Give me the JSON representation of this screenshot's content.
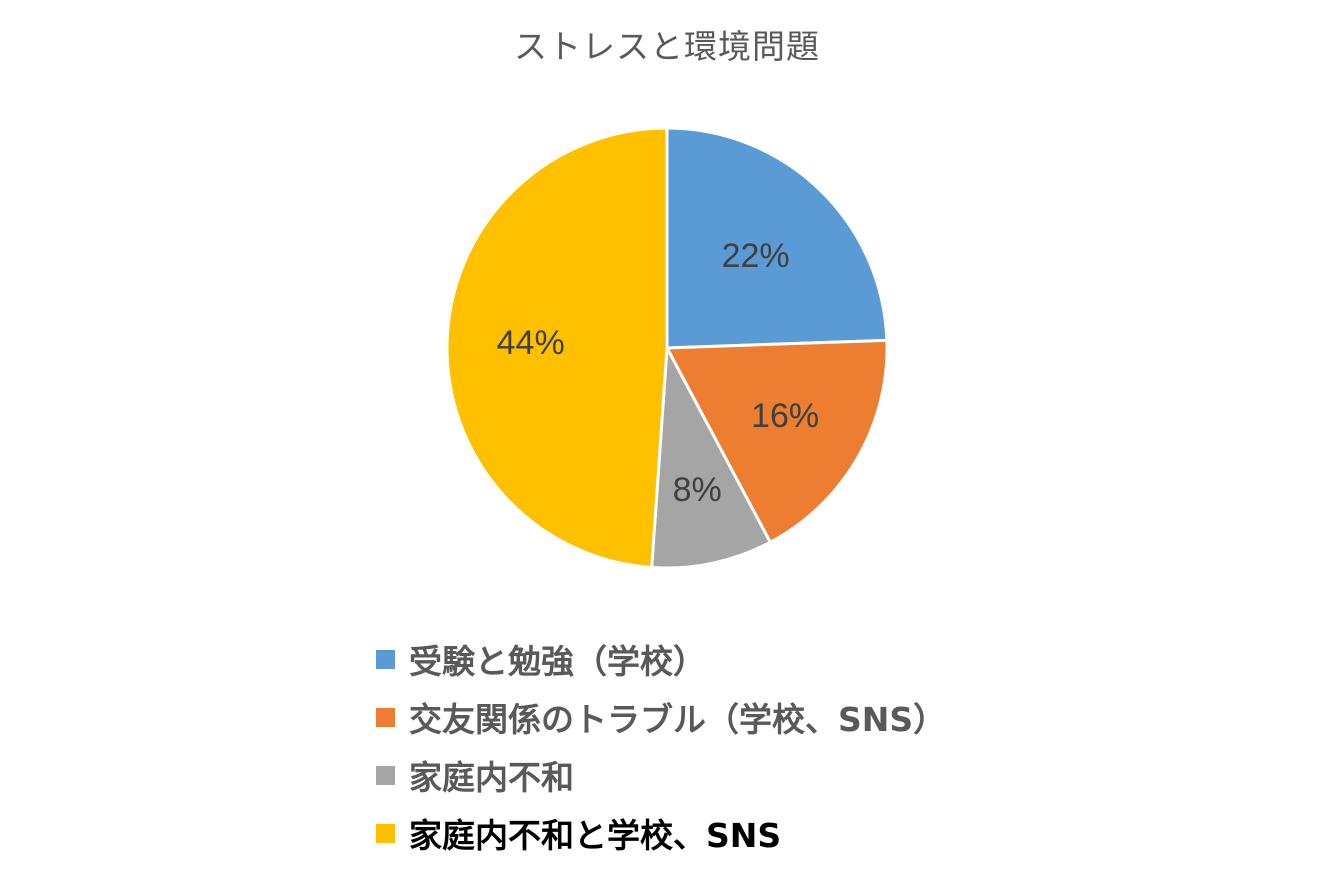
{
  "chart_data": {
    "type": "pie",
    "title": "ストレスと環境問題",
    "categories": [
      "受験と勉強（学校）",
      "交友関係のトラブル（学校、SNS）",
      "家庭内不和",
      "家庭内不和と学校、SNS"
    ],
    "values": [
      22,
      16,
      8,
      44
    ],
    "data_labels": [
      "22%",
      "16%",
      "8%",
      "44%"
    ],
    "colors": [
      "#5b9bd5",
      "#ed7d31",
      "#a5a5a5",
      "#ffc000"
    ],
    "legend_position": "bottom",
    "start_angle": "12 o'clock, clockwise"
  }
}
